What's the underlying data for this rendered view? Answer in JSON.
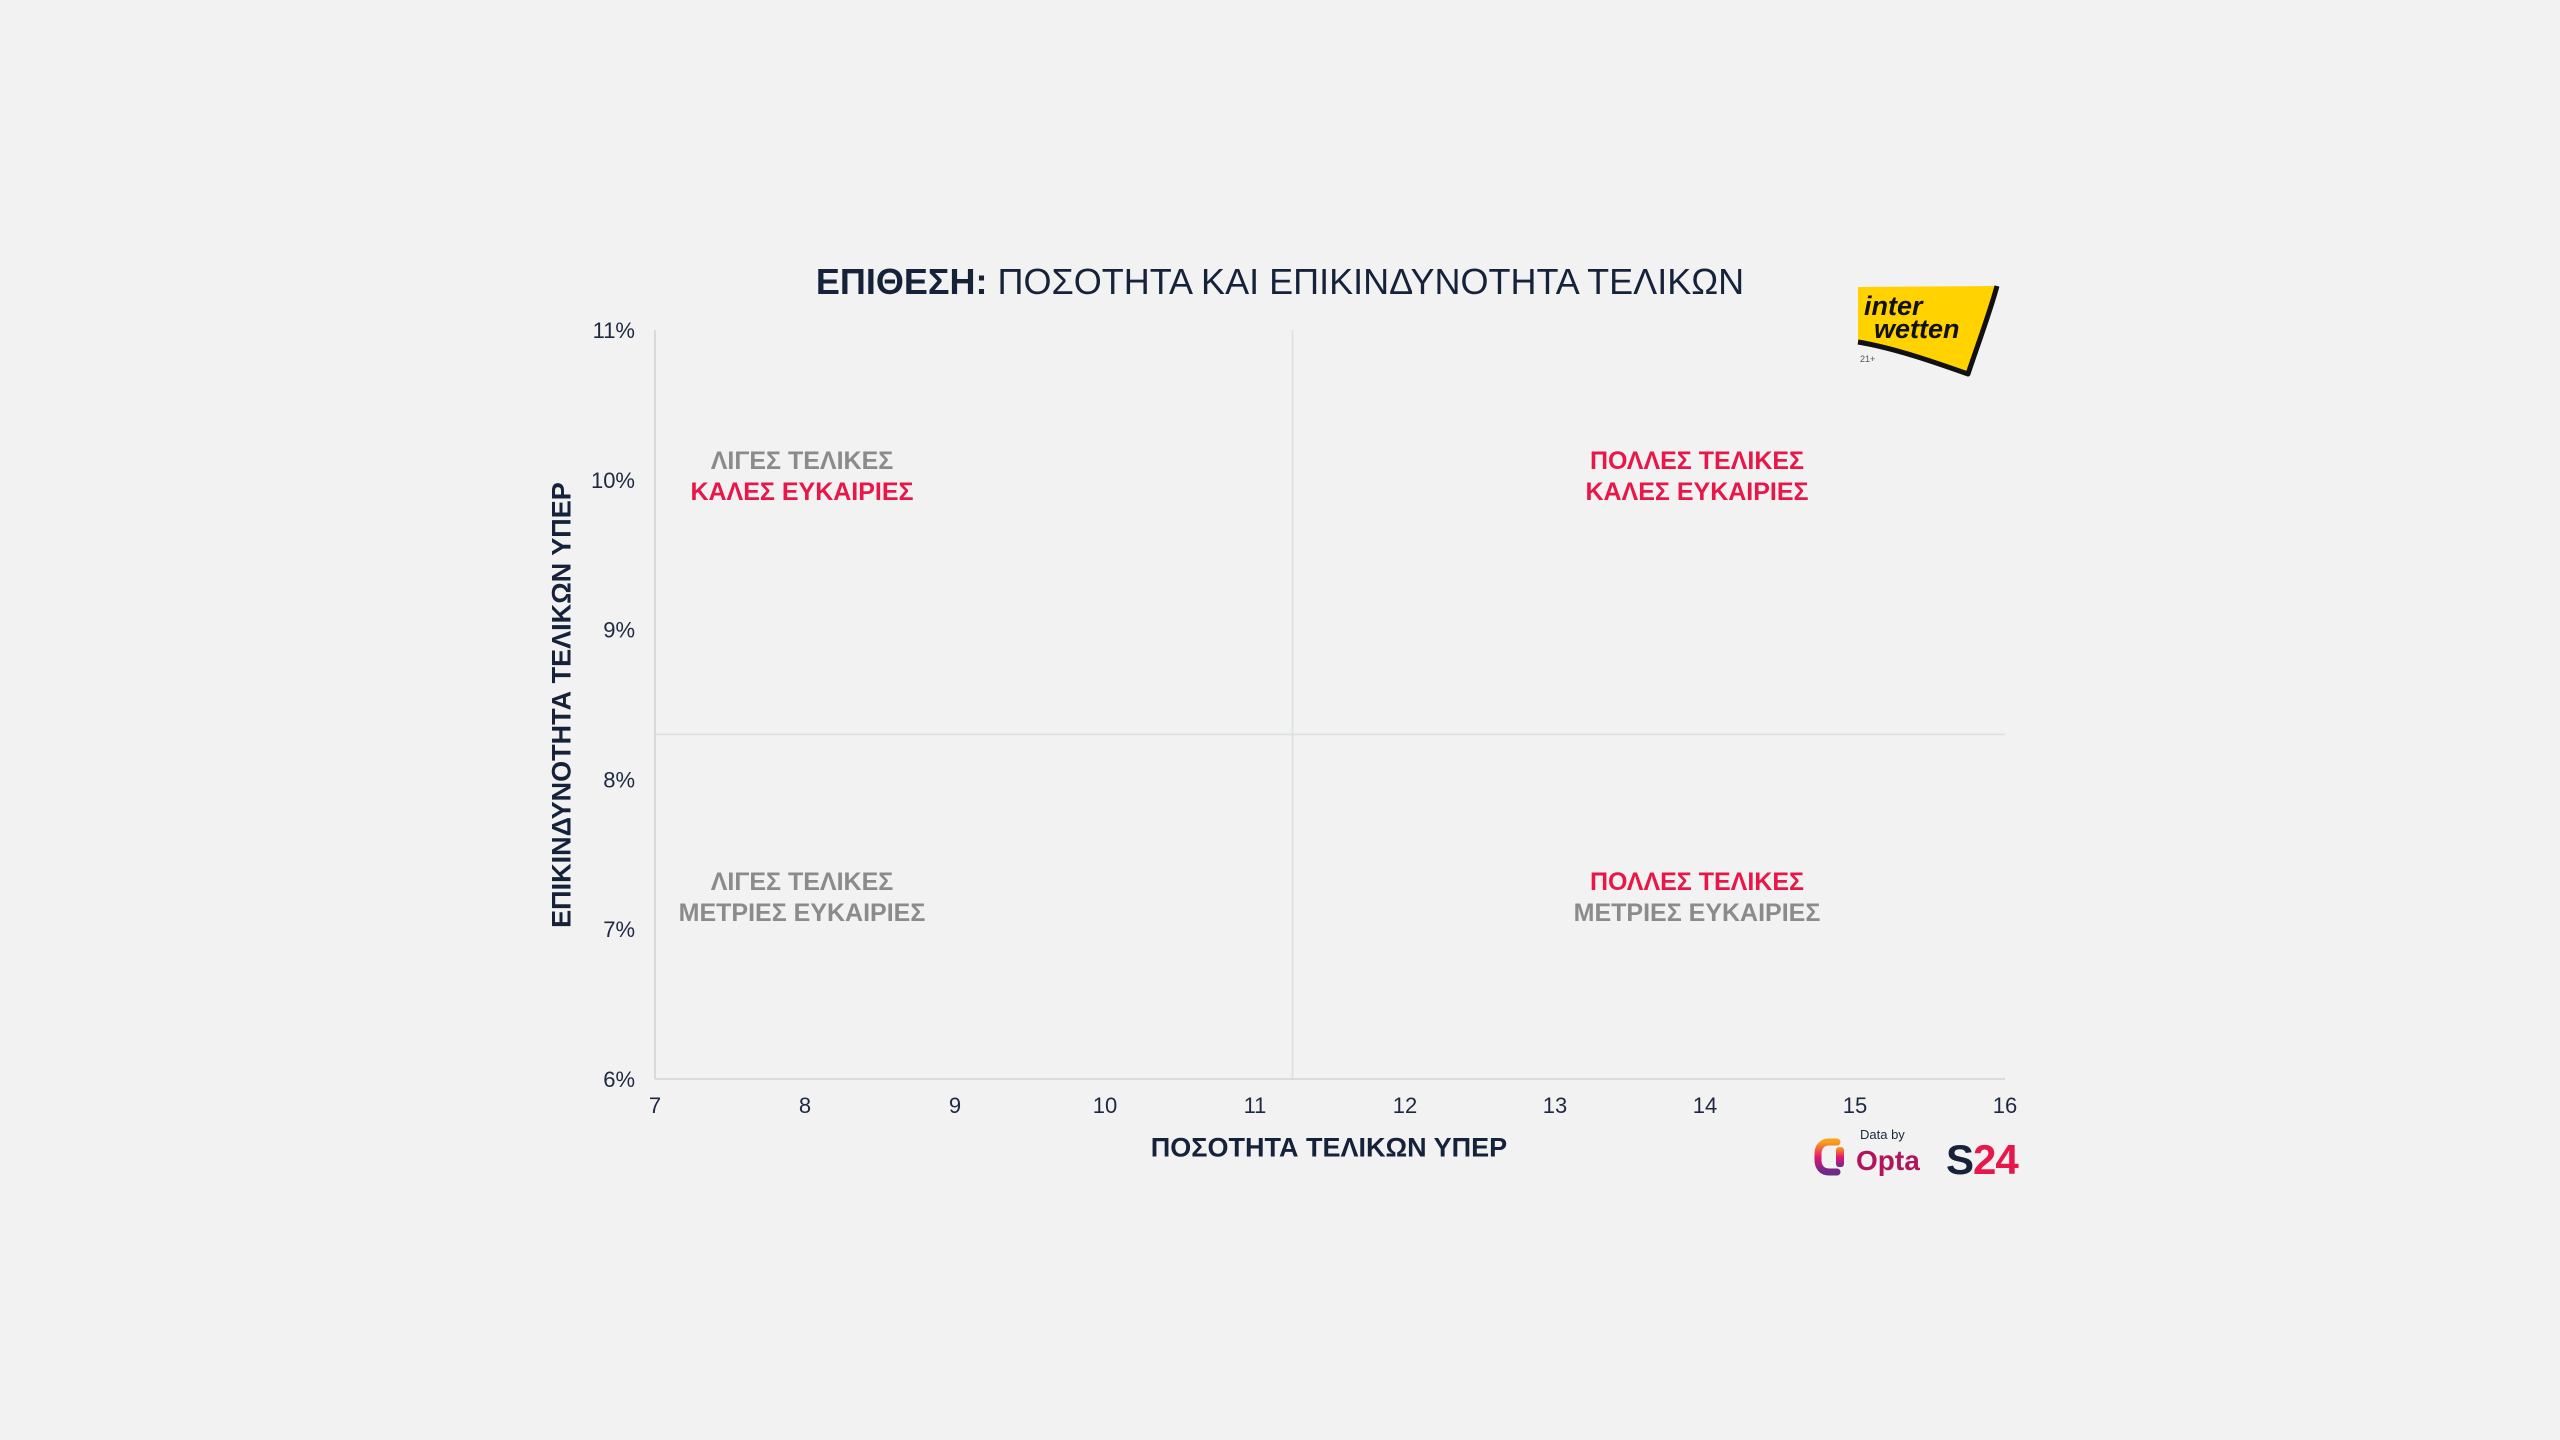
{
  "chart_data": {
    "type": "scatter",
    "title_prefix": "ΕΠΙΘΕΣΗ:",
    "title": "ΠΟΣΟΤΗΤΑ ΚΑΙ ΕΠΙΚΙΝΔΥΝΟΤΗΤΑ ΤΕΛΙΚΩΝ",
    "xlabel": "ΠΟΣΟΤΗΤΑ ΤΕΛΙΚΩΝ ΥΠΕΡ",
    "ylabel": "ΕΠΙΚΙΝΔΥΝΟΤΗΤΑ ΤΕΛΙΚΩΝ ΥΠΕΡ",
    "xlim": [
      7,
      16
    ],
    "ylim": [
      6,
      11
    ],
    "x_ticks": [
      7,
      8,
      9,
      10,
      11,
      12,
      13,
      14,
      15,
      16
    ],
    "y_ticks": [
      6,
      7,
      8,
      9,
      10,
      11
    ],
    "y_tick_labels": [
      "6%",
      "7%",
      "8%",
      "9%",
      "10%",
      "11%"
    ],
    "grid": false,
    "points": [],
    "reference_lines": {
      "x": 11.25,
      "y": 8.3
    },
    "quadrants": [
      {
        "position": "top-left",
        "lines": [
          {
            "text": "ΛΙΓΕΣ ΤΕΛΙΚΕΣ",
            "color": "#8b8b8b"
          },
          {
            "text": "ΚΑΛΕΣ ΕΥΚΑΙΡΙΕΣ",
            "color": "#e8174a"
          }
        ]
      },
      {
        "position": "top-right",
        "lines": [
          {
            "text": "ΠΟΛΛΕΣ ΤΕΛΙΚΕΣ",
            "color": "#e8174a"
          },
          {
            "text": "ΚΑΛΕΣ ΕΥΚΑΙΡΙΕΣ",
            "color": "#e8174a"
          }
        ]
      },
      {
        "position": "bottom-left",
        "lines": [
          {
            "text": "ΛΙΓΕΣ ΤΕΛΙΚΕΣ",
            "color": "#8b8b8b"
          },
          {
            "text": "ΜΕΤΡΙΕΣ ΕΥΚΑΙΡΙΕΣ",
            "color": "#8b8b8b"
          }
        ]
      },
      {
        "position": "bottom-right",
        "lines": [
          {
            "text": "ΠΟΛΛΕΣ ΤΕΛΙΚΕΣ",
            "color": "#e8174a"
          },
          {
            "text": "ΜΕΤΡΙΕΣ ΕΥΚΑΙΡΙΕΣ",
            "color": "#8b8b8b"
          }
        ]
      }
    ]
  },
  "sponsor": {
    "line1": "inter",
    "line2": "wetten",
    "age_label": "21+"
  },
  "credits": {
    "data_by": "Data by",
    "opta": "Opta",
    "s24_letter": "S",
    "s24_number": "24"
  },
  "colors": {
    "background": "#f2f2f2",
    "title_navy": "#16213a",
    "accent_red": "#e8174a",
    "muted_gray": "#8b8b8b",
    "sponsor_yellow": "#ffd200"
  },
  "icons": {
    "sponsor_logo": "interwetten-logo",
    "opta_mark": "opta-logo-icon",
    "s24_logo": "s24-logo"
  }
}
